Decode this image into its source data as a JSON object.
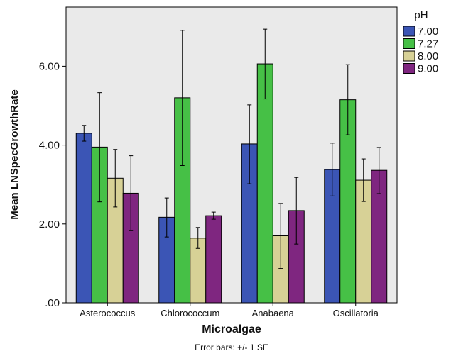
{
  "chart_data": {
    "type": "bar",
    "xlabel": "Microalgae",
    "ylabel": "Mean LNSpecGrowthRate",
    "categories": [
      "Asterococcus",
      "Chlorococcum",
      "Anabaena",
      "Oscillatoria"
    ],
    "ylim": [
      0,
      7.5
    ],
    "yticks": [
      0,
      2,
      4,
      6
    ],
    "ytick_labels": [
      ".00",
      "2.00",
      "4.00",
      "6.00"
    ],
    "legend_title": "pH",
    "legend_position": "top-right, outside plot",
    "grid": false,
    "plot_background": "#eaeaea",
    "footnote": "Error bars: +/- 1 SE",
    "series": [
      {
        "name": "7.00",
        "color": "#3b55b5",
        "values": [
          4.3,
          2.17,
          4.03,
          3.38
        ],
        "error_low": [
          4.1,
          1.67,
          3.02,
          2.71
        ],
        "error_high": [
          4.5,
          2.66,
          5.02,
          4.05
        ]
      },
      {
        "name": "7.27",
        "color": "#46c046",
        "values": [
          3.95,
          5.2,
          6.06,
          5.15
        ],
        "error_low": [
          2.56,
          3.48,
          5.17,
          4.26
        ],
        "error_high": [
          5.33,
          6.91,
          6.94,
          6.04
        ]
      },
      {
        "name": "8.00",
        "color": "#d7d196",
        "values": [
          3.16,
          1.64,
          1.7,
          3.11
        ],
        "error_low": [
          2.43,
          1.38,
          0.87,
          2.57
        ],
        "error_high": [
          3.89,
          1.91,
          2.52,
          3.65
        ]
      },
      {
        "name": "9.00",
        "color": "#7f2680",
        "values": [
          2.78,
          2.21,
          2.34,
          3.36
        ],
        "error_low": [
          1.83,
          2.12,
          1.49,
          2.77
        ],
        "error_high": [
          3.73,
          2.3,
          3.18,
          3.94
        ]
      }
    ]
  }
}
